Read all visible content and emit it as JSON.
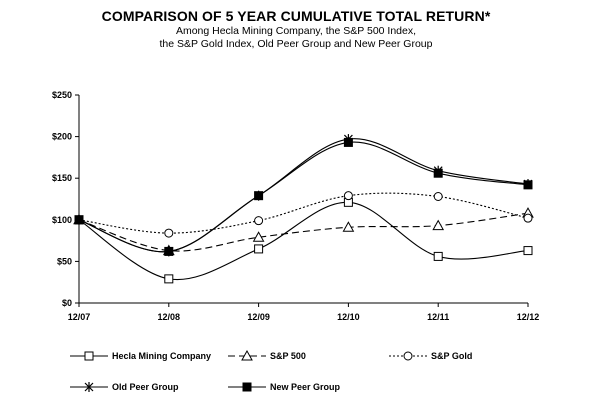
{
  "chart_data": {
    "type": "line",
    "title": "COMPARISON OF 5 YEAR CUMULATIVE TOTAL RETURN*",
    "subtitle_lines": [
      "Among Hecla Mining Company, the S&P 500 Index,",
      "the S&P Gold Index, Old Peer Group and New Peer Group"
    ],
    "xlabel": "",
    "ylabel": "",
    "categories": [
      "12/07",
      "12/08",
      "12/09",
      "12/10",
      "12/11",
      "12/12"
    ],
    "ylim": [
      0,
      250
    ],
    "yticks": [
      0,
      50,
      100,
      150,
      200,
      250
    ],
    "ytick_labels": [
      "$0",
      "$50",
      "$100",
      "$150",
      "$200",
      "$250"
    ],
    "grid": false,
    "legend_position": "bottom",
    "series": [
      {
        "name": "Hecla Mining Company",
        "values": [
          100,
          29,
          65,
          121,
          56,
          63
        ],
        "line": "solid",
        "marker": "square-open",
        "smooth": true
      },
      {
        "name": "S&P 500",
        "values": [
          100,
          63,
          79,
          91,
          93,
          108
        ],
        "line": "dashed",
        "marker": "triangle-open",
        "smooth": true
      },
      {
        "name": "S&P Gold",
        "values": [
          100,
          84,
          99,
          129,
          128,
          102
        ],
        "line": "dotted",
        "marker": "circle-open",
        "smooth": true
      },
      {
        "name": "Old Peer Group",
        "values": [
          100,
          62,
          129,
          197,
          159,
          143
        ],
        "line": "solid",
        "marker": "star",
        "smooth": true
      },
      {
        "name": "New Peer Group",
        "values": [
          100,
          62,
          129,
          193,
          156,
          142
        ],
        "line": "solid",
        "marker": "square-filled",
        "smooth": true
      }
    ]
  }
}
